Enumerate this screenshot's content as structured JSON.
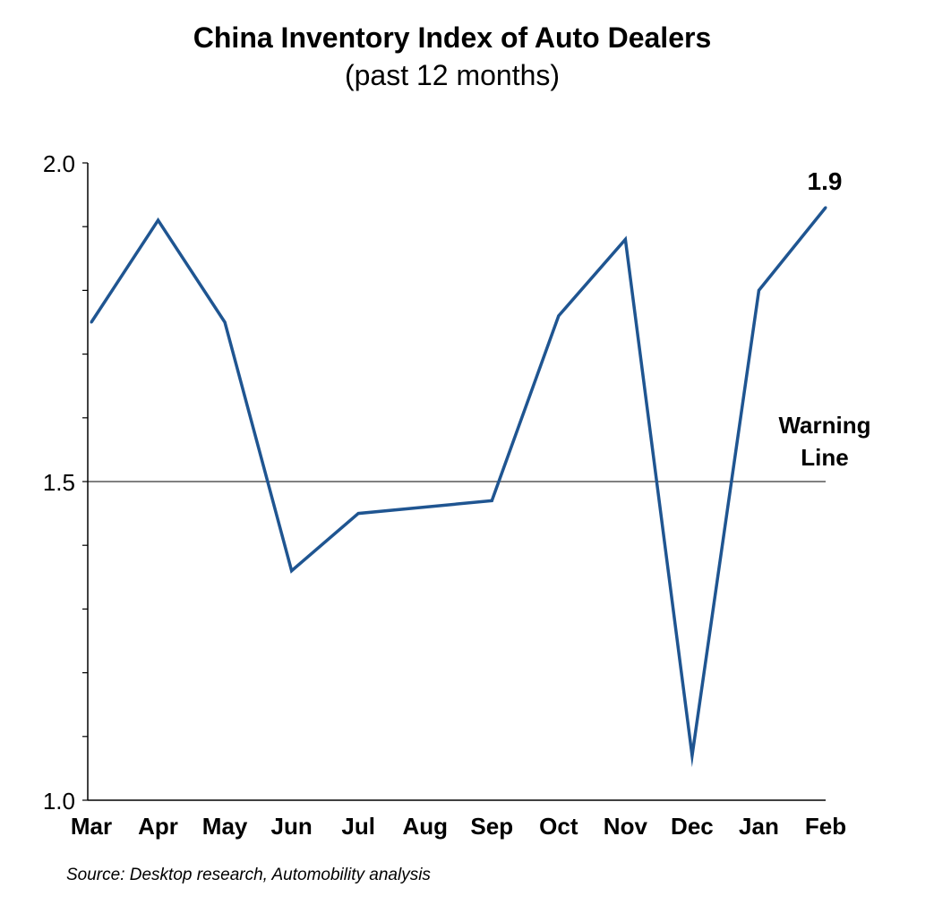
{
  "chart_data": {
    "type": "line",
    "title": "China Inventory Index of Auto Dealers",
    "subtitle": "(past 12 months)",
    "xlabel": "",
    "ylabel": "",
    "categories": [
      "Mar",
      "Apr",
      "May",
      "Jun",
      "Jul",
      "Aug",
      "Sep",
      "Oct",
      "Nov",
      "Dec",
      "Jan",
      "Feb"
    ],
    "series": [
      {
        "values": [
          1.75,
          1.91,
          1.75,
          1.36,
          1.45,
          1.46,
          1.47,
          1.76,
          1.88,
          1.07,
          1.8,
          1.93
        ],
        "color": "#1f5591"
      }
    ],
    "ylim": [
      1.0,
      2.0
    ],
    "yticks": [
      1.0,
      1.5,
      2.0
    ],
    "ytick_labels": [
      "1.0",
      "1.5",
      "2.0"
    ],
    "yminor_step": 0.1,
    "reference_line": {
      "value": 1.5,
      "label_lines": [
        "Warning",
        "Line"
      ],
      "color": "#000000"
    },
    "end_label": "1.9",
    "grid": false,
    "legend": "none",
    "source": "Source: Desktop research, Automobility analysis"
  }
}
